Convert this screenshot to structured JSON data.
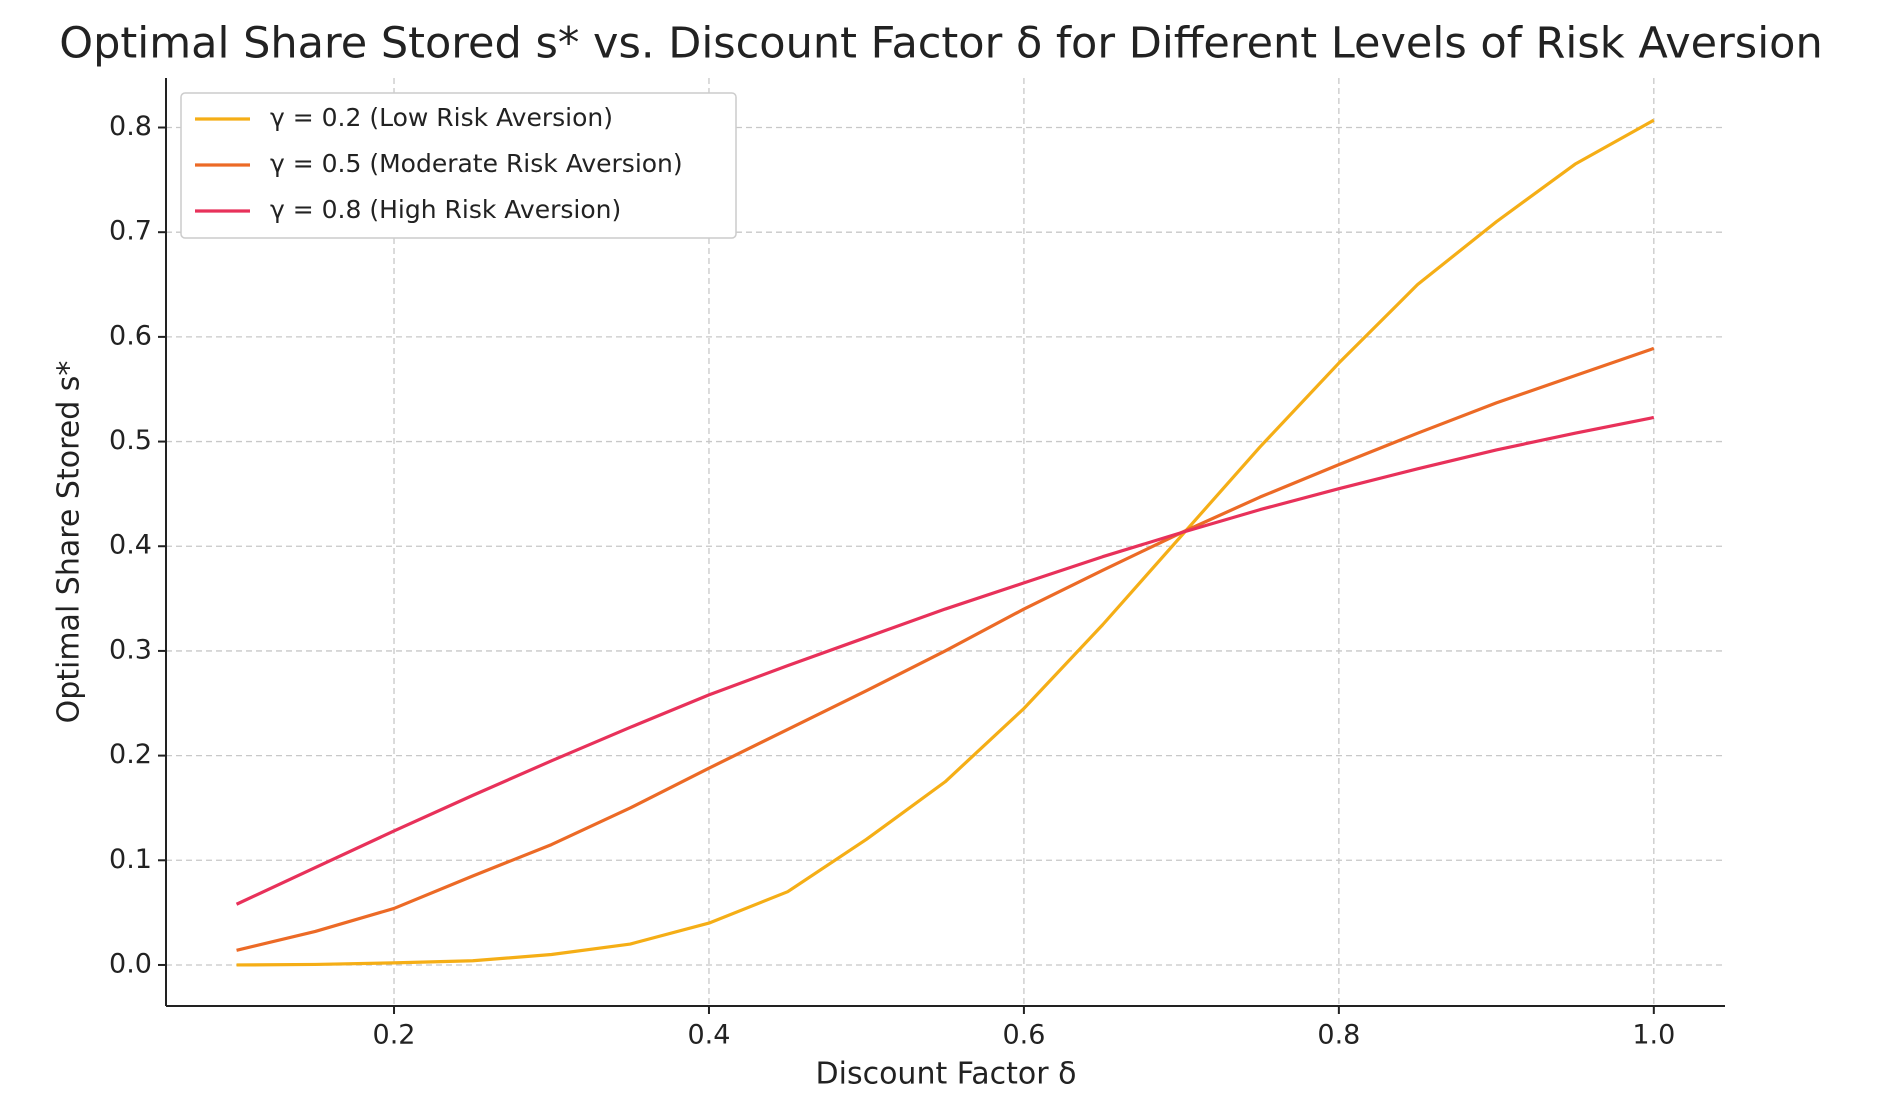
{
  "chart_data": {
    "type": "line",
    "title": "Optimal Share Stored s* vs. Discount Factor δ for Different Levels of Risk Aversion",
    "xlabel": "Discount Factor δ",
    "ylabel": "Optimal Share Stored s*",
    "x": [
      0.1,
      0.15,
      0.2,
      0.25,
      0.3,
      0.35,
      0.4,
      0.45,
      0.5,
      0.55,
      0.6,
      0.65,
      0.7,
      0.75,
      0.8,
      0.85,
      0.9,
      0.95,
      1.0
    ],
    "series": [
      {
        "name": "γ = 0.2 (Low Risk Aversion)",
        "color": "#f5ae16",
        "values": [
          0,
          0.0005,
          0.002,
          0.004,
          0.01,
          0.02,
          0.04,
          0.07,
          0.12,
          0.175,
          0.245,
          0.325,
          0.41,
          0.495,
          0.575,
          0.65,
          0.71,
          0.765,
          0.807
        ]
      },
      {
        "name": "γ = 0.5 (Moderate Risk Aversion)",
        "color": "#ec6a26",
        "values": [
          0.014,
          0.032,
          0.054,
          0.085,
          0.115,
          0.15,
          0.188,
          0.225,
          0.262,
          0.3,
          0.34,
          0.377,
          0.413,
          0.447,
          0.478,
          0.508,
          0.537,
          0.563,
          0.589
        ]
      },
      {
        "name": "γ = 0.8 (High Risk Aversion)",
        "color": "#e8315a",
        "values": [
          0.058,
          0.093,
          0.128,
          0.162,
          0.195,
          0.227,
          0.258,
          0.286,
          0.313,
          0.34,
          0.365,
          0.39,
          0.413,
          0.435,
          0.455,
          0.474,
          0.492,
          0.508,
          0.523
        ]
      }
    ],
    "xlim": [
      0.0552,
      1.0452
    ],
    "ylim": [
      -0.0392,
      0.8473
    ],
    "xticks": [
      0.2,
      0.4,
      0.6,
      0.8,
      {
        "value": 1,
        "label": "1.0"
      }
    ],
    "yticks": [
      {
        "value": 0,
        "label": "0.0"
      },
      0.1,
      0.2,
      0.3,
      0.4,
      0.5,
      0.6,
      0.7,
      0.8
    ],
    "grid": true,
    "legend": "upper left"
  }
}
